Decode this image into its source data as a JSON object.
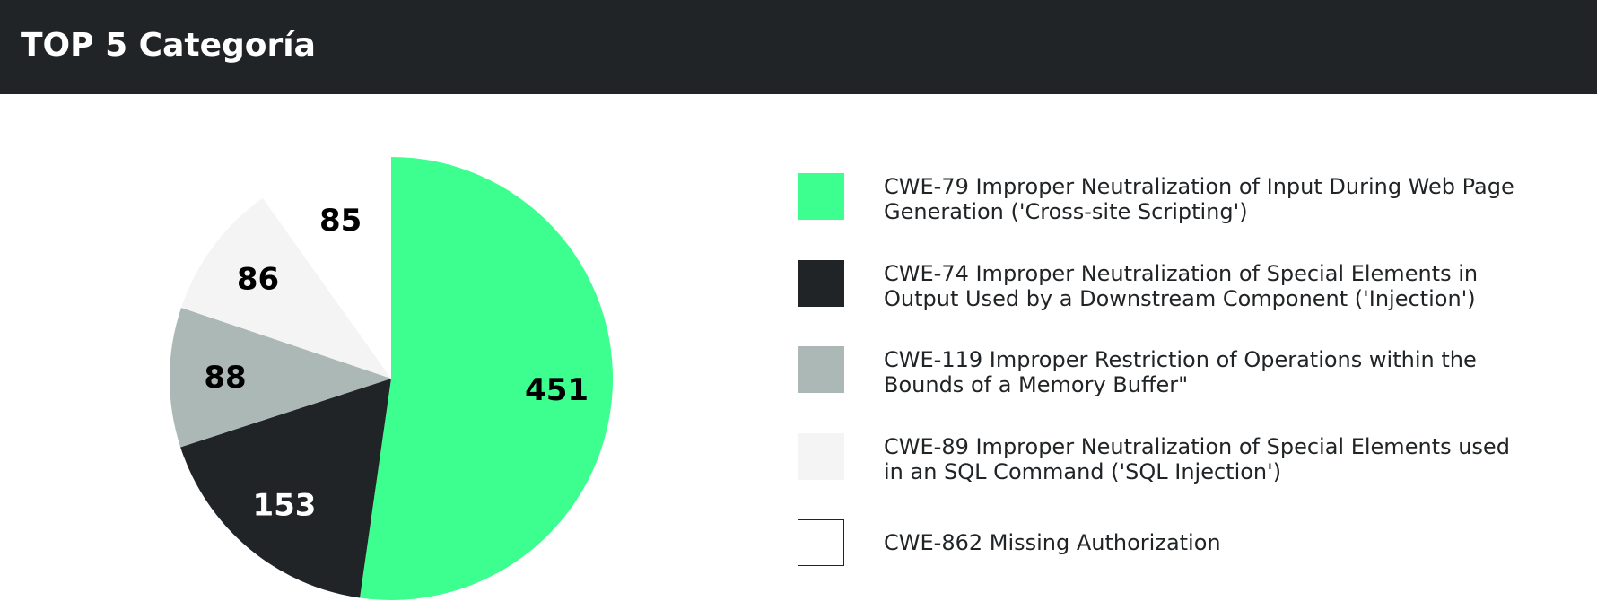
{
  "header": {
    "title": "TOP 5 Categoría"
  },
  "chart_data": {
    "type": "pie",
    "title": "TOP 5 Categoría",
    "categories": [
      "CWE-79 Improper Neutralization of Input During Web Page Generation ('Cross-site Scripting')",
      "CWE-74 Improper Neutralization of Special Elements in Output Used by a Downstream Component ('Injection')",
      "CWE-119 Improper Restriction of Operations within the Bounds of a Memory Buffer\"",
      "CWE-89 Improper Neutralization of Special Elements used in an SQL Command ('SQL Injection')",
      "CWE-862 Missing Authorization"
    ],
    "values": [
      451,
      153,
      88,
      86,
      85
    ],
    "data_labels": [
      "451",
      "153",
      "88",
      "86",
      "85"
    ],
    "colors": [
      "#3dff8f",
      "#212426",
      "#abb8b6",
      "#f4f4f4",
      "#ffffff"
    ],
    "label_colors": [
      "#000000",
      "#ffffff",
      "#000000",
      "#000000",
      "#000000"
    ],
    "legend_position": "right",
    "start": "top",
    "direction": "clockwise"
  }
}
